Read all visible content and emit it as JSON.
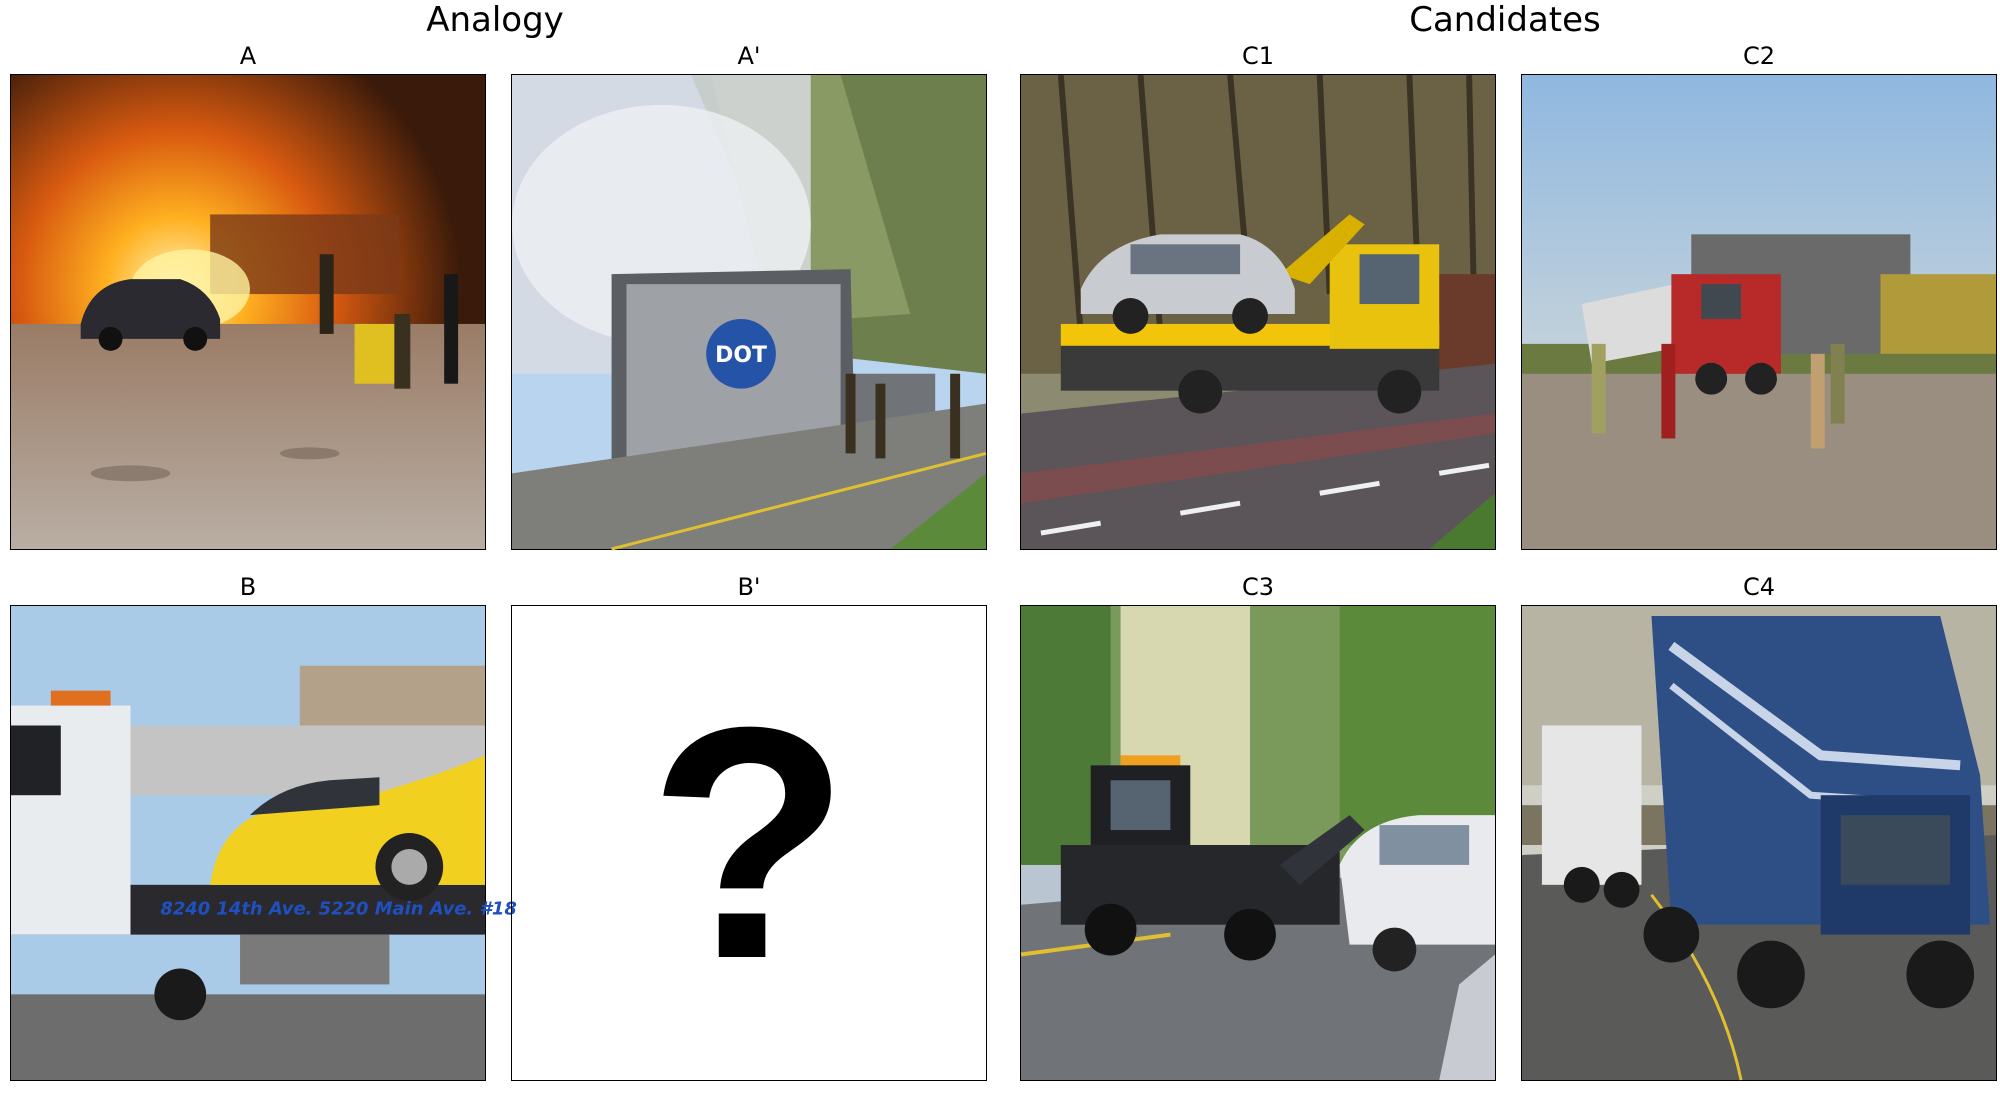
{
  "headings": {
    "analogy": "Analogy",
    "candidates": "Candidates"
  },
  "panels": {
    "a": {
      "label": "A",
      "icon": "burning-car-photo"
    },
    "a_prime": {
      "label": "A'",
      "icon": "burning-truck-photo"
    },
    "b": {
      "label": "B",
      "icon": "yellow-car-on-flatbed-photo"
    },
    "b_prime": {
      "label": "B'",
      "placeholder": "?"
    },
    "c1": {
      "label": "C1",
      "icon": "silver-car-on-tow-truck-photo"
    },
    "c2": {
      "label": "C2",
      "icon": "truck-hit-by-train-photo"
    },
    "c3": {
      "label": "C3",
      "icon": "tow-truck-towing-car-photo"
    },
    "c4": {
      "label": "C4",
      "icon": "blue-semi-being-towed-photo"
    }
  },
  "photo_text": {
    "b_truck_lettering": "8240 14th Ave.  5220 Main Ave. #18",
    "a_prime_truck_logo": "DOT"
  }
}
